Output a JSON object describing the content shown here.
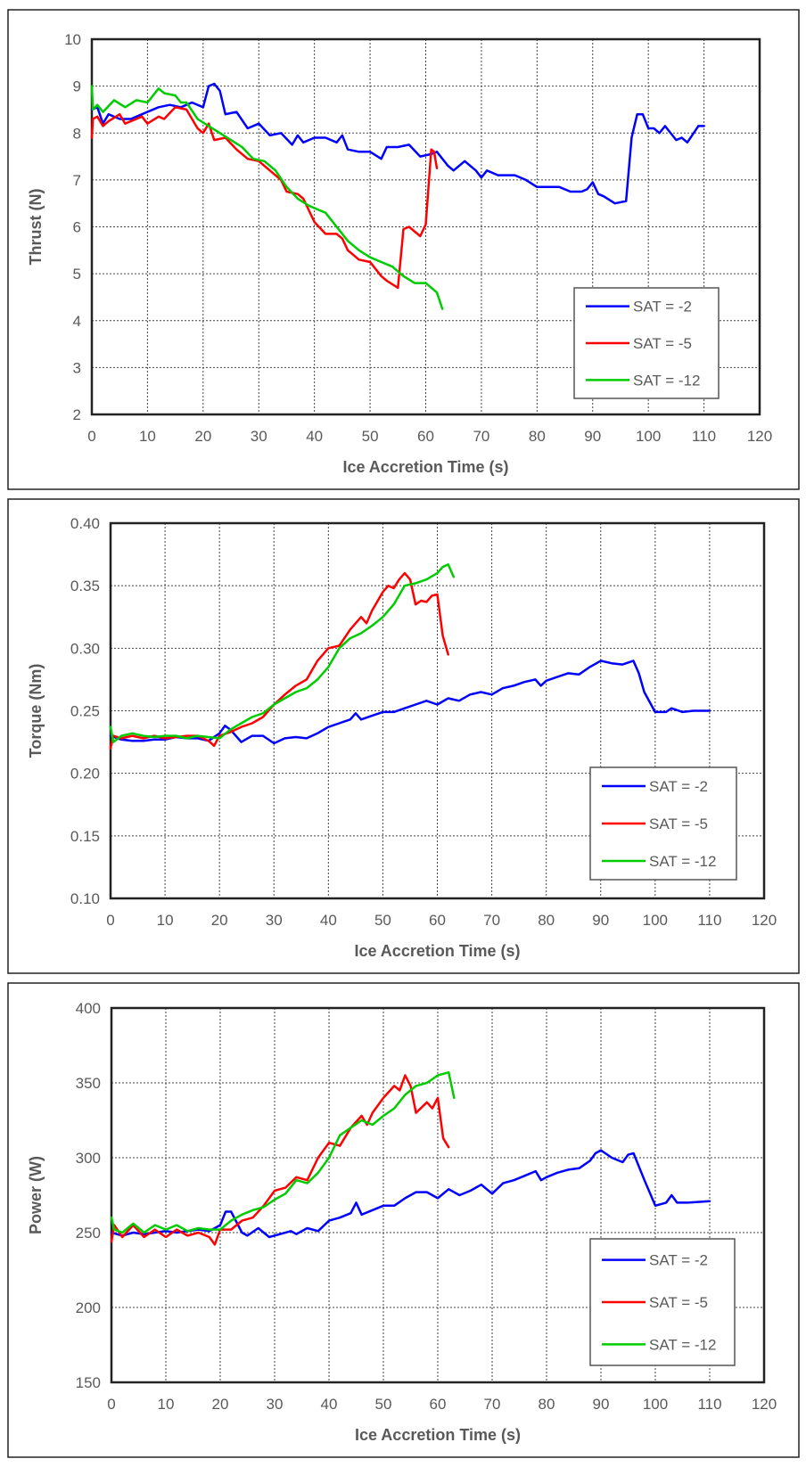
{
  "chart_data": [
    {
      "type": "line",
      "xlabel": "Ice Accretion Time (s)",
      "ylabel": "Thrust (N)",
      "xlim": [
        0,
        120
      ],
      "xstep": 10,
      "ylim": [
        2,
        10
      ],
      "ystep": 1,
      "ydecimals": 0,
      "grid": true,
      "legend": "bottom-right",
      "series": [
        {
          "name": "SAT = -2",
          "color": "#0000ff",
          "x": [
            0,
            1,
            2,
            3,
            5,
            7,
            9,
            12,
            14,
            16,
            18,
            20,
            21,
            22,
            23,
            24,
            26,
            28,
            30,
            32,
            34,
            36,
            37,
            38,
            40,
            42,
            44,
            45,
            46,
            48,
            50,
            52,
            53,
            55,
            57,
            59,
            61,
            62,
            64,
            65,
            67,
            69,
            70,
            71,
            73,
            75,
            76,
            78,
            80,
            82,
            84,
            86,
            88,
            89,
            90,
            91,
            92,
            94,
            96,
            97,
            98,
            99,
            100,
            101,
            102,
            103,
            105,
            106,
            107,
            109,
            110
          ],
          "y": [
            8.5,
            8.55,
            8.2,
            8.4,
            8.3,
            8.3,
            8.4,
            8.55,
            8.6,
            8.55,
            8.65,
            8.55,
            9.0,
            9.05,
            8.9,
            8.4,
            8.45,
            8.1,
            8.2,
            7.95,
            8.0,
            7.75,
            7.95,
            7.8,
            7.9,
            7.9,
            7.8,
            7.95,
            7.65,
            7.6,
            7.6,
            7.45,
            7.7,
            7.7,
            7.75,
            7.5,
            7.55,
            7.6,
            7.3,
            7.2,
            7.4,
            7.2,
            7.05,
            7.2,
            7.1,
            7.1,
            7.1,
            7.0,
            6.85,
            6.85,
            6.85,
            6.75,
            6.75,
            6.8,
            6.95,
            6.7,
            6.65,
            6.5,
            6.55,
            7.9,
            8.4,
            8.4,
            8.1,
            8.1,
            8.0,
            8.15,
            7.85,
            7.9,
            7.8,
            8.15,
            8.15
          ]
        },
        {
          "name": "SAT = -5",
          "color": "#ff0000",
          "x": [
            0,
            0.2,
            1,
            2,
            3,
            5,
            6,
            8,
            9,
            10,
            12,
            13,
            15,
            17,
            19,
            20,
            21,
            22,
            24,
            26,
            28,
            30,
            32,
            34,
            35,
            37,
            38,
            40,
            42,
            44,
            45,
            46,
            48,
            50,
            52,
            53,
            55,
            56,
            57,
            59,
            60,
            61,
            61.5,
            62
          ],
          "y": [
            7.9,
            8.3,
            8.35,
            8.15,
            8.25,
            8.4,
            8.2,
            8.3,
            8.35,
            8.2,
            8.35,
            8.3,
            8.55,
            8.5,
            8.1,
            8.0,
            8.2,
            7.85,
            7.9,
            7.65,
            7.45,
            7.4,
            7.2,
            7.0,
            6.75,
            6.7,
            6.6,
            6.1,
            5.85,
            5.85,
            5.75,
            5.5,
            5.3,
            5.25,
            4.95,
            4.85,
            4.7,
            5.95,
            6.0,
            5.8,
            6.05,
            7.65,
            7.6,
            7.25
          ]
        },
        {
          "name": "SAT = -12",
          "color": "#00cc00",
          "x": [
            0,
            0.2,
            1,
            2,
            4,
            6,
            8,
            10,
            12,
            13,
            15,
            16,
            17,
            19,
            21,
            23,
            25,
            27,
            29,
            31,
            33,
            35,
            37,
            39,
            41,
            42,
            44,
            46,
            48,
            50,
            52,
            54,
            56,
            58,
            60,
            62,
            63
          ],
          "y": [
            9.0,
            8.5,
            8.6,
            8.45,
            8.7,
            8.55,
            8.7,
            8.65,
            8.95,
            8.85,
            8.8,
            8.65,
            8.65,
            8.3,
            8.15,
            8.0,
            7.85,
            7.7,
            7.45,
            7.4,
            7.2,
            6.85,
            6.6,
            6.45,
            6.35,
            6.3,
            6.0,
            5.7,
            5.5,
            5.35,
            5.25,
            5.15,
            4.95,
            4.8,
            4.8,
            4.6,
            4.25
          ]
        }
      ]
    },
    {
      "type": "line",
      "xlabel": "Ice Accretion Time (s)",
      "ylabel": "Torque (Nm)",
      "xlim": [
        0,
        120
      ],
      "xstep": 10,
      "ylim": [
        0.1,
        0.4
      ],
      "ystep": 0.05,
      "ydecimals": 2,
      "grid": true,
      "legend": "bottom-right",
      "series": [
        {
          "name": "SAT = -2",
          "color": "#0000ff",
          "x": [
            0,
            2,
            4,
            6,
            8,
            10,
            12,
            14,
            16,
            18,
            20,
            21,
            22,
            24,
            26,
            28,
            30,
            32,
            34,
            36,
            38,
            40,
            42,
            44,
            45,
            46,
            48,
            50,
            52,
            54,
            56,
            58,
            60,
            62,
            64,
            66,
            68,
            70,
            72,
            74,
            76,
            78,
            79,
            80,
            82,
            84,
            86,
            88,
            90,
            92,
            94,
            96,
            97,
            98,
            100,
            102,
            103,
            105,
            107,
            110
          ],
          "y": [
            0.23,
            0.227,
            0.226,
            0.226,
            0.227,
            0.227,
            0.229,
            0.228,
            0.228,
            0.226,
            0.232,
            0.238,
            0.235,
            0.225,
            0.23,
            0.23,
            0.224,
            0.228,
            0.229,
            0.228,
            0.232,
            0.237,
            0.24,
            0.243,
            0.248,
            0.243,
            0.246,
            0.249,
            0.249,
            0.252,
            0.255,
            0.258,
            0.255,
            0.26,
            0.258,
            0.263,
            0.265,
            0.263,
            0.268,
            0.27,
            0.273,
            0.275,
            0.27,
            0.274,
            0.277,
            0.28,
            0.279,
            0.285,
            0.29,
            0.288,
            0.287,
            0.29,
            0.28,
            0.265,
            0.249,
            0.249,
            0.252,
            0.249,
            0.25,
            0.25
          ]
        },
        {
          "name": "SAT = -5",
          "color": "#ff0000",
          "x": [
            0,
            0.5,
            2,
            4,
            6,
            8,
            10,
            12,
            14,
            16,
            18,
            19,
            20,
            22,
            24,
            26,
            28,
            30,
            32,
            34,
            36,
            38,
            40,
            42,
            44,
            46,
            47,
            48,
            50,
            51,
            52,
            53,
            54,
            55,
            56,
            57,
            58,
            59,
            60,
            61,
            62
          ],
          "y": [
            0.22,
            0.23,
            0.228,
            0.23,
            0.228,
            0.23,
            0.228,
            0.229,
            0.23,
            0.23,
            0.226,
            0.222,
            0.23,
            0.233,
            0.237,
            0.24,
            0.245,
            0.255,
            0.263,
            0.27,
            0.275,
            0.29,
            0.3,
            0.302,
            0.315,
            0.325,
            0.32,
            0.33,
            0.345,
            0.35,
            0.348,
            0.355,
            0.36,
            0.355,
            0.335,
            0.338,
            0.337,
            0.342,
            0.343,
            0.31,
            0.295
          ]
        },
        {
          "name": "SAT = -12",
          "color": "#00cc00",
          "x": [
            0,
            0.5,
            2,
            4,
            6,
            8,
            10,
            12,
            14,
            16,
            18,
            20,
            22,
            24,
            26,
            28,
            30,
            32,
            34,
            36,
            38,
            40,
            42,
            44,
            46,
            48,
            50,
            52,
            54,
            56,
            58,
            60,
            61,
            62,
            63
          ],
          "y": [
            0.237,
            0.225,
            0.23,
            0.232,
            0.23,
            0.229,
            0.23,
            0.23,
            0.228,
            0.23,
            0.229,
            0.228,
            0.235,
            0.24,
            0.245,
            0.248,
            0.255,
            0.26,
            0.265,
            0.268,
            0.275,
            0.285,
            0.3,
            0.308,
            0.312,
            0.318,
            0.325,
            0.335,
            0.35,
            0.352,
            0.355,
            0.36,
            0.365,
            0.367,
            0.357
          ]
        }
      ]
    },
    {
      "type": "line",
      "xlabel": "Ice Accretion Time (s)",
      "ylabel": "Power (W)",
      "xlim": [
        0,
        120
      ],
      "xstep": 10,
      "ylim": [
        150,
        400
      ],
      "ystep": 50,
      "ydecimals": 0,
      "grid": true,
      "legend": "bottom-right",
      "series": [
        {
          "name": "SAT = -2",
          "color": "#0000ff",
          "x": [
            0,
            2,
            4,
            6,
            8,
            10,
            12,
            14,
            16,
            18,
            20,
            21,
            22,
            24,
            25,
            27,
            29,
            31,
            33,
            34,
            36,
            38,
            40,
            42,
            44,
            45,
            46,
            48,
            50,
            52,
            54,
            56,
            58,
            60,
            62,
            64,
            66,
            68,
            70,
            72,
            74,
            76,
            78,
            79,
            80,
            82,
            84,
            86,
            88,
            89,
            90,
            92,
            94,
            95,
            96,
            98,
            100,
            102,
            103,
            104,
            106,
            110
          ],
          "y": [
            250,
            248,
            250,
            249,
            250,
            251,
            250,
            251,
            252,
            251,
            255,
            264,
            264,
            250,
            248,
            253,
            247,
            249,
            251,
            249,
            253,
            251,
            258,
            260,
            263,
            270,
            262,
            265,
            268,
            268,
            273,
            277,
            277,
            273,
            279,
            275,
            278,
            282,
            276,
            283,
            285,
            288,
            291,
            285,
            287,
            290,
            292,
            293,
            298,
            303,
            305,
            300,
            297,
            302,
            303,
            285,
            268,
            270,
            275,
            270,
            270,
            271
          ]
        },
        {
          "name": "SAT = -5",
          "color": "#ff0000",
          "x": [
            0,
            0.5,
            2,
            4,
            6,
            8,
            10,
            12,
            14,
            16,
            18,
            19,
            20,
            22,
            24,
            26,
            28,
            30,
            32,
            34,
            36,
            38,
            40,
            42,
            44,
            46,
            47,
            48,
            50,
            52,
            53,
            54,
            55,
            56,
            58,
            59,
            60,
            61,
            62
          ],
          "y": [
            244,
            255,
            247,
            255,
            247,
            252,
            247,
            252,
            248,
            250,
            247,
            242,
            252,
            252,
            258,
            260,
            268,
            278,
            280,
            287,
            285,
            300,
            310,
            308,
            320,
            328,
            322,
            330,
            340,
            348,
            345,
            355,
            348,
            330,
            337,
            333,
            340,
            313,
            307
          ]
        },
        {
          "name": "SAT = -12",
          "color": "#00cc00",
          "x": [
            0,
            0.5,
            2,
            4,
            6,
            8,
            10,
            12,
            14,
            16,
            18,
            20,
            22,
            24,
            26,
            28,
            30,
            32,
            34,
            36,
            38,
            40,
            42,
            44,
            46,
            48,
            50,
            52,
            54,
            56,
            58,
            60,
            62,
            63
          ],
          "y": [
            260,
            252,
            250,
            256,
            250,
            255,
            252,
            255,
            251,
            253,
            252,
            252,
            258,
            262,
            265,
            267,
            272,
            276,
            285,
            283,
            290,
            300,
            315,
            320,
            325,
            322,
            328,
            333,
            342,
            348,
            350,
            355,
            357,
            340
          ]
        }
      ]
    }
  ]
}
